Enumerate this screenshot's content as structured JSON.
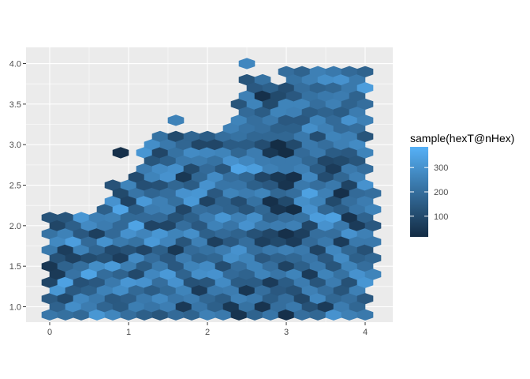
{
  "chart_data": {
    "type": "hexbin",
    "x_range": [
      -0.3,
      4.35
    ],
    "y_range": [
      0.81,
      4.2
    ],
    "x_ticks": [
      0,
      1,
      2,
      3,
      4
    ],
    "x_tick_labels": [
      "0",
      "1",
      "2",
      "3",
      "4"
    ],
    "y_ticks": [
      1.0,
      1.5,
      2.0,
      2.5,
      3.0,
      3.5,
      4.0
    ],
    "y_tick_labels": [
      "1.0",
      "1.5",
      "2.0",
      "2.5",
      "3.0",
      "3.5",
      "4.0"
    ],
    "grid": true,
    "legend": {
      "title": "sample(hexT@nHex)",
      "placement": "right",
      "min": 15,
      "max": 385,
      "breaks": [
        100,
        200,
        300
      ],
      "break_labels": [
        "100",
        "200",
        "300"
      ],
      "color_low": "#132B43",
      "color_high": "#56B1F7"
    },
    "hex_spacing": {
      "dx": 0.2,
      "dy": 0.1
    },
    "column_extents": [
      {
        "x": 0.0,
        "y0": 0.9,
        "y1": 2.25,
        "values": [
          225,
          145,
          86,
          48,
          232,
          213,
          126,
          34,
          277,
          130,
          250,
          75,
          193,
          55,
          147
        ]
      },
      {
        "x": 0.1,
        "y0": 1.0,
        "y1": 2.1,
        "values": [
          168,
          312,
          57,
          120,
          274,
          90,
          188,
          240,
          145,
          60,
          230,
          100
        ]
      },
      {
        "x": 0.2,
        "y0": 0.9,
        "y1": 2.1,
        "values": [
          205,
          95,
          342,
          170,
          66,
          255,
          131,
          198,
          300,
          83,
          176,
          251,
          144
        ]
      },
      {
        "x": 0.3,
        "y0": 1.0,
        "y1": 2.1,
        "values": [
          288,
          142,
          212,
          77,
          333,
          159,
          101,
          230,
          186,
          265,
          60,
          210
        ]
      },
      {
        "x": 0.4,
        "y0": 0.9,
        "y1": 2.2,
        "values": [
          186,
          270,
          121,
          203,
          255,
          140,
          310,
          92,
          222,
          168,
          277,
          139,
          240,
          330
        ]
      },
      {
        "x": 0.5,
        "y0": 1.0,
        "y1": 2.1,
        "values": [
          240,
          160,
          345,
          105,
          190,
          278,
          214,
          136,
          260,
          180,
          87,
          152
        ]
      },
      {
        "x": 0.6,
        "y0": 0.9,
        "y1": 2.2,
        "values": [
          312,
          230,
          140,
          287,
          175,
          70,
          248,
          199,
          320,
          130,
          263,
          350,
          95,
          180
        ]
      },
      {
        "x": 0.7,
        "y0": 1.0,
        "y1": 2.3,
        "values": [
          176,
          255,
          198,
          122,
          299,
          240,
          160,
          215,
          80,
          277,
          320,
          72,
          190,
          110
        ]
      },
      {
        "x": 0.8,
        "y0": 0.9,
        "y1": 2.5,
        "values": [
          265,
          143,
          230,
          321,
          99,
          187,
          252,
          300,
          123,
          175,
          58,
          230,
          298,
          162,
          200,
          90,
          135
        ]
      },
      {
        "x": 0.9,
        "y0": 1.0,
        "y1": 2.4,
        "values": [
          144,
          288,
          170,
          66,
          232,
          187,
          350,
          100,
          236,
          178,
          45,
          210,
          170,
          255,
          300
        ]
      },
      {
        "x": 0.9,
        "y0": 2.9,
        "y1": 2.9,
        "values": [
          30
        ]
      },
      {
        "x": 1.0,
        "y0": 0.9,
        "y1": 2.5,
        "values": [
          200,
          156,
          311,
          243,
          120,
          298,
          188,
          82,
          260,
          144,
          330,
          189,
          210,
          66,
          222,
          120,
          175
        ]
      },
      {
        "x": 1.1,
        "y0": 1.0,
        "y1": 2.6,
        "values": [
          243,
          185,
          97,
          278,
          210,
          345,
          150,
          220,
          103,
          270,
          199,
          140,
          260,
          320,
          88,
          160,
          240
        ]
      },
      {
        "x": 1.2,
        "y0": 0.9,
        "y1": 3.0,
        "values": [
          158,
          230,
          300,
          147,
          85,
          262,
          190,
          320,
          115,
          240,
          310,
          180,
          96,
          220,
          270,
          140,
          210,
          156,
          300,
          250,
          330,
          340
        ]
      },
      {
        "x": 1.3,
        "y0": 1.0,
        "y1": 3.0,
        "values": [
          220,
          150,
          270,
          195,
          320,
          85,
          240,
          175,
          260,
          133,
          288,
          200,
          95,
          242,
          176,
          305,
          220,
          132,
          245,
          320,
          160
        ]
      },
      {
        "x": 1.4,
        "y0": 0.9,
        "y1": 3.1,
        "values": [
          130,
          275,
          200,
          233,
          160,
          310,
          190,
          250,
          120,
          280,
          90,
          210,
          340,
          170,
          225,
          265,
          140,
          198,
          287,
          150,
          220,
          345,
          280
        ]
      },
      {
        "x": 1.5,
        "y0": 1.0,
        "y1": 3.0,
        "values": [
          245,
          188,
          320,
          140,
          262,
          86,
          250,
          200,
          300,
          160,
          230,
          180,
          93,
          248,
          176,
          275,
          136,
          210,
          80,
          225,
          340
        ]
      },
      {
        "x": 1.6,
        "y0": 0.9,
        "y1": 3.3,
        "values": [
          190,
          220,
          300,
          140,
          50,
          260,
          122,
          205,
          180,
          295,
          210,
          100,
          255,
          170,
          45,
          230,
          150,
          310,
          200,
          88,
          255,
          145,
          180,
          60,
          320
        ]
      },
      {
        "x": 1.7,
        "y0": 1.0,
        "y1": 3.0,
        "values": [
          55,
          260,
          170,
          240,
          130,
          200,
          90,
          300,
          50,
          230,
          178,
          350,
          150,
          270,
          110,
          196,
          60,
          250,
          180,
          230,
          60
        ]
      },
      {
        "x": 1.8,
        "y0": 0.9,
        "y1": 3.1,
        "values": [
          170,
          240,
          120,
          260,
          190,
          290,
          160,
          320,
          150,
          100,
          280,
          175,
          220,
          130,
          260,
          75,
          195,
          270,
          150,
          245,
          90,
          110,
          60
        ]
      },
      {
        "x": 1.9,
        "y0": 1.0,
        "y1": 3.0,
        "values": [
          220,
          60,
          290,
          170,
          250,
          140,
          200,
          310,
          180,
          235,
          90,
          250,
          170,
          300,
          140,
          225,
          200,
          120,
          260,
          180,
          100
        ]
      },
      {
        "x": 2.0,
        "y0": 0.9,
        "y1": 3.1,
        "values": [
          250,
          180,
          130,
          280,
          210,
          160,
          240,
          80,
          300,
          190,
          270,
          150,
          210,
          100,
          245,
          170,
          315,
          140,
          200,
          255,
          130,
          230,
          60
        ]
      },
      {
        "x": 2.1,
        "y0": 1.0,
        "y1": 3.0,
        "values": [
          160,
          230,
          300,
          180,
          70,
          255,
          190,
          140,
          280,
          210,
          90,
          235,
          175,
          260,
          150,
          215,
          40,
          240,
          185,
          110,
          270
        ]
      },
      {
        "x": 2.2,
        "y0": 0.9,
        "y1": 3.1,
        "values": [
          230,
          150,
          280,
          110,
          240,
          190,
          310,
          170,
          220,
          130,
          260,
          200,
          250,
          180,
          290,
          120,
          230,
          160,
          210,
          270,
          140,
          80,
          190
        ]
      },
      {
        "x": 2.3,
        "y0": 1.0,
        "y1": 3.2,
        "values": [
          50,
          240,
          190,
          290,
          140,
          220,
          170,
          260,
          200,
          300,
          150,
          250,
          95,
          230,
          180,
          270,
          130,
          215,
          175,
          250,
          160,
          200,
          230
        ]
      },
      {
        "x": 2.4,
        "y0": 0.9,
        "y1": 3.6,
        "values": [
          40,
          250,
          150,
          200,
          300,
          170,
          250,
          110,
          220,
          350,
          180,
          210,
          260,
          130,
          240,
          190,
          280,
          150,
          205,
          250,
          170,
          230,
          200,
          260,
          180,
          70,
          40,
          110
        ]
      },
      {
        "x": 2.5,
        "y0": 1.0,
        "y1": 4.0,
        "values": [
          210,
          45,
          170,
          260,
          200,
          300,
          130,
          240,
          180,
          270,
          150,
          215,
          190,
          250,
          130,
          270,
          200,
          160,
          240,
          180,
          230,
          260,
          150,
          210,
          180,
          120,
          240,
          280,
          90,
          250,
          60
        ]
      },
      {
        "x": 2.6,
        "y0": 0.9,
        "y1": 3.7,
        "values": [
          170,
          230,
          150,
          260,
          200,
          120,
          290,
          210,
          160,
          330,
          240,
          180,
          200,
          260,
          140,
          220,
          170,
          250,
          190,
          230,
          150,
          200,
          180,
          260,
          230,
          140,
          200,
          230,
          250
        ]
      },
      {
        "x": 2.7,
        "y0": 1.0,
        "y1": 3.8,
        "values": [
          40,
          200,
          260,
          140,
          70,
          230,
          180,
          260,
          90,
          240,
          110,
          200,
          150,
          30,
          210,
          250,
          130,
          220,
          170,
          240,
          200,
          150,
          260,
          190,
          210,
          60,
          180,
          240,
          170
        ]
      },
      {
        "x": 2.8,
        "y0": 0.9,
        "y1": 3.7,
        "values": [
          220,
          150,
          60,
          200,
          230,
          90,
          170,
          30,
          140,
          250,
          50,
          180,
          230,
          100,
          160,
          240,
          200,
          260,
          150,
          220,
          180,
          230,
          120,
          200,
          190,
          240,
          160,
          80,
          190
        ]
      },
      {
        "x": 2.9,
        "y0": 1.0,
        "y1": 3.6,
        "values": [
          200,
          140,
          220,
          170,
          100,
          240,
          40,
          180,
          50,
          230,
          20,
          160,
          260,
          100,
          200,
          250,
          120,
          210,
          170,
          230,
          60,
          200,
          140,
          180,
          240,
          170,
          90
        ]
      },
      {
        "x": 3.0,
        "y0": 0.9,
        "y1": 4.0,
        "values": [
          30,
          200,
          150,
          80,
          250,
          30,
          200,
          100,
          40,
          230,
          20,
          180,
          140,
          260,
          110,
          200,
          220,
          140,
          250,
          170,
          220,
          60,
          190,
          30,
          200,
          230,
          50,
          160,
          250,
          180,
          200,
          240
        ]
      },
      {
        "x": 3.1,
        "y0": 1.0,
        "y1": 3.9,
        "values": [
          230,
          120,
          260,
          180,
          60,
          250,
          20,
          200,
          30,
          230,
          100,
          160,
          250,
          140,
          210,
          180,
          230,
          170,
          280,
          210,
          160,
          230,
          30,
          200,
          250,
          140,
          270,
          90,
          190,
          210
        ]
      },
      {
        "x": 3.2,
        "y0": 0.9,
        "y1": 4.0,
        "values": [
          200,
          90,
          240,
          160,
          230,
          70,
          210,
          290,
          230,
          250,
          190,
          230,
          140,
          260,
          200,
          170,
          230,
          250,
          150,
          210,
          300,
          180,
          230,
          100,
          250,
          200,
          160,
          280,
          210,
          60,
          250,
          200
        ]
      },
      {
        "x": 3.3,
        "y0": 1.0,
        "y1": 3.9,
        "values": [
          120,
          250,
          60,
          220,
          190,
          90,
          300,
          340,
          270,
          180,
          230,
          290,
          150,
          210,
          250,
          170,
          230,
          280,
          140,
          200,
          320,
          250,
          180,
          260,
          150,
          230,
          290,
          210,
          170,
          250
        ]
      },
      {
        "x": 3.4,
        "y0": 0.9,
        "y1": 4.0,
        "values": [
          180,
          270,
          130,
          230,
          80,
          200,
          330,
          260,
          200,
          150,
          230,
          110,
          260,
          200,
          170,
          250,
          300,
          140,
          210,
          260,
          180,
          230,
          280,
          150,
          230,
          110,
          270,
          200,
          240,
          330,
          260,
          330
        ]
      },
      {
        "x": 3.5,
        "y0": 1.0,
        "y1": 3.9,
        "values": [
          60,
          200,
          260,
          140,
          230,
          300,
          180,
          250,
          110,
          90,
          200,
          250,
          170,
          230,
          290,
          150,
          220,
          260,
          190,
          240,
          140,
          300,
          200,
          170,
          250,
          210,
          150,
          250,
          290,
          180
        ]
      },
      {
        "x": 3.6,
        "y0": 0.9,
        "y1": 4.0,
        "values": [
          300,
          180,
          240,
          130,
          270,
          200,
          340,
          100,
          230,
          60,
          150,
          260,
          190,
          250,
          180,
          230,
          150,
          290,
          210,
          80,
          260,
          200,
          240,
          170,
          40,
          230,
          180,
          250,
          300,
          220,
          200,
          340
        ]
      },
      {
        "x": 3.7,
        "y0": 1.0,
        "y1": 3.9,
        "values": [
          240,
          130,
          210,
          280,
          60,
          230,
          150,
          30,
          180,
          100,
          250,
          190,
          150,
          240,
          300,
          120,
          250,
          190,
          170,
          230,
          280,
          200,
          140,
          250,
          180,
          330,
          210,
          250,
          200,
          300
        ]
      },
      {
        "x": 3.8,
        "y0": 0.9,
        "y1": 4.0,
        "values": [
          250,
          200,
          120,
          260,
          180,
          300,
          40,
          200,
          80,
          230,
          140,
          250,
          300,
          170,
          230,
          190,
          260,
          130,
          220,
          270,
          200,
          240,
          130,
          210,
          260,
          300,
          190,
          250,
          320,
          200,
          260,
          350
        ]
      },
      {
        "x": 3.9,
        "y0": 1.0,
        "y1": 3.9,
        "values": [
          180,
          250,
          300,
          160,
          230,
          60,
          220,
          190,
          250,
          130,
          280,
          200,
          240,
          170,
          230,
          300,
          100,
          250,
          200,
          260,
          150,
          230,
          200,
          250,
          300,
          150,
          230,
          260,
          200,
          120
        ]
      },
      {
        "x": 4.0,
        "y0": 0.9,
        "y1": 4.0,
        "values": [
          230,
          140,
          310,
          200,
          120,
          250,
          170,
          240,
          300,
          200,
          260,
          130,
          250,
          200,
          330,
          170,
          230,
          110,
          40,
          200,
          250,
          190,
          240,
          170,
          280,
          200,
          300,
          150,
          260,
          230,
          190,
          60
        ]
      },
      {
        "x": 4.1,
        "y0": 1.4,
        "y1": 2.4,
        "values": [
          260,
          180,
          230,
          140,
          260,
          200,
          300,
          170,
          230,
          80,
          20
        ]
      }
    ]
  }
}
